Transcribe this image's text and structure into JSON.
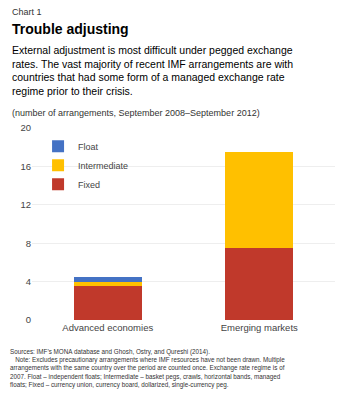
{
  "chart_data": {
    "type": "bar",
    "chart_label": "Chart 1",
    "title": "Trouble adjusting",
    "subtitle": "External adjustment is most difficult under pegged exchange\nrates. The vast majority of recent IMF arrangements are with\ncountries that had some form of a managed exchange rate\nregime prior to their crisis.",
    "x_label": "(number of arrangements, September 2008–September 2012)",
    "sources": "Sources: IMF’s MONA database and Ghosh, Ostry, and Qureshi (2014).\n   Note: Excludes precautionary arrangements where IMF resources have not been drawn. Multiple\narrangements with the same country over the period are counted once. Exchange rate regime is of\n2007. Float – independent floats; Intermediate – basket pegs, crawls, horizontal bands, managed\nfloats; Fixed – currency union, currency board, dollarized, single-currency peg.",
    "categories": [
      "Advanced economies",
      "Emerging markets"
    ],
    "series": [
      {
        "name": "Fixed",
        "color": "#C0392B",
        "values": [
          3.5,
          7.5
        ]
      },
      {
        "name": "Intermediate",
        "color": "#FFC000",
        "values": [
          0.5,
          10
        ]
      },
      {
        "name": "Float",
        "color": "#4472C4",
        "values": [
          0.5,
          0
        ]
      }
    ],
    "stacked": true,
    "ylim": [
      0,
      20
    ],
    "yticks": [
      0,
      4,
      8,
      12,
      16,
      20
    ],
    "grid": true,
    "legend": "upper left"
  }
}
